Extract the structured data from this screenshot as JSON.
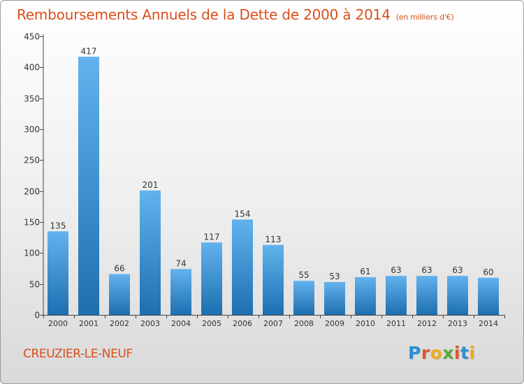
{
  "title": "Remboursements Annuels de la Dette de 2000 à 2014",
  "unit_note": "(en milliers d'€)",
  "commune": "CREUZIER-LE-NEUF",
  "logo": {
    "text": "Proxiti",
    "letter_colors": [
      "#2a8fd6",
      "#e2542a",
      "#f2a81d",
      "#5aa838",
      "#e2542a",
      "#2a8fd6",
      "#f2a81d"
    ]
  },
  "colors": {
    "bar_light": "#62b2ee",
    "bar_dark": "#1d6fb0",
    "title": "#d94f1a",
    "axis": "#444444"
  },
  "chart_data": {
    "type": "bar",
    "categories": [
      "2000",
      "2001",
      "2002",
      "2003",
      "2004",
      "2005",
      "2006",
      "2007",
      "2008",
      "2009",
      "2010",
      "2011",
      "2012",
      "2013",
      "2014"
    ],
    "values": [
      135,
      417,
      66,
      201,
      74,
      117,
      154,
      113,
      55,
      53,
      61,
      63,
      63,
      63,
      60
    ],
    "ylim": [
      0,
      450
    ],
    "yticks": [
      0,
      50,
      100,
      150,
      200,
      250,
      300,
      350,
      400,
      450
    ],
    "grid": false,
    "legend": "none"
  }
}
